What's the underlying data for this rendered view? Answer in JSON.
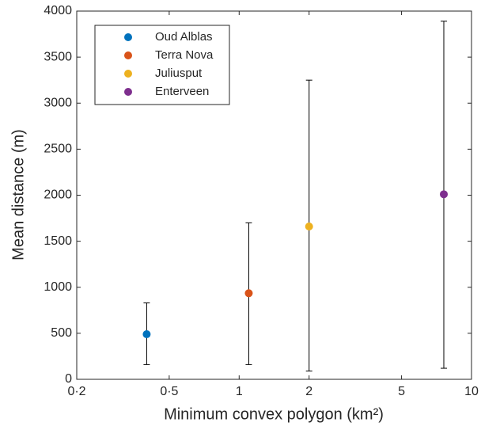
{
  "chart_data": {
    "type": "scatter",
    "xlabel": "Minimum convex polygon (km²)",
    "ylabel": "Mean distance (m)",
    "xscale": "log",
    "xlim": [
      0.2,
      10
    ],
    "xticks": [
      {
        "value": 0.2,
        "label": "0·2"
      },
      {
        "value": 0.5,
        "label": "0·5"
      },
      1,
      2,
      5,
      10
    ],
    "ylim": [
      0,
      4000
    ],
    "yticks": [
      0,
      500,
      1000,
      1500,
      2000,
      2500,
      3000,
      3500,
      4000
    ],
    "grid": false,
    "legend": "upper left",
    "series": [
      {
        "name": "Oud Alblas",
        "color": "#0072bd",
        "x": [
          0.4
        ],
        "values": [
          490
        ],
        "error_minus": [
          330
        ],
        "error_plus": [
          340
        ]
      },
      {
        "name": "Terra Nova",
        "color": "#d95319",
        "x": [
          1.1
        ],
        "values": [
          935
        ],
        "error_minus": [
          775
        ],
        "error_plus": [
          765
        ]
      },
      {
        "name": "Juliusput",
        "color": "#edb120",
        "x": [
          2
        ],
        "values": [
          1660
        ],
        "error_minus": [
          1570
        ],
        "error_plus": [
          1590
        ]
      },
      {
        "name": "Enterveen",
        "color": "#7e2f8e",
        "x": [
          7.6
        ],
        "values": [
          2010
        ],
        "error_minus": [
          1890
        ],
        "error_plus": [
          1880
        ]
      }
    ]
  }
}
